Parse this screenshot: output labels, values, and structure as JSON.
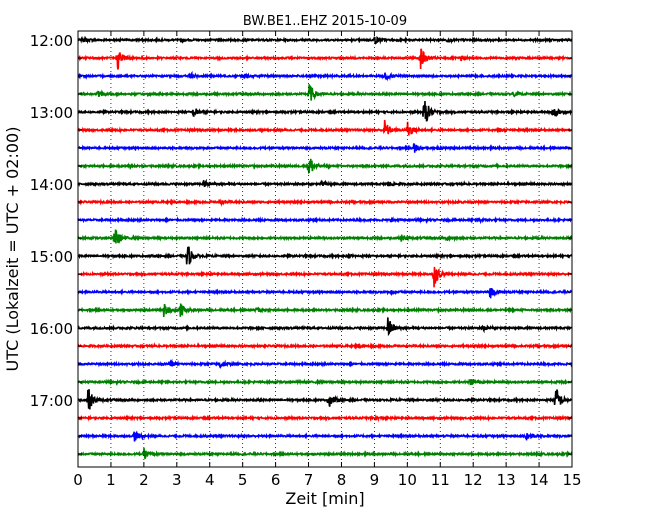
{
  "chart_data": {
    "type": "line",
    "title": "BW.BE1..EHZ 2015-10-09",
    "xlabel": "Zeit  [min]",
    "ylabel": "UTC (Lokalzeit = UTC + 02:00)",
    "xlim": [
      0,
      15
    ],
    "x_ticks": [
      0,
      1,
      2,
      3,
      4,
      5,
      6,
      7,
      8,
      9,
      10,
      11,
      12,
      13,
      14,
      15
    ],
    "y_tick_labels": [
      "12:00",
      "13:00",
      "14:00",
      "15:00",
      "16:00",
      "17:00"
    ],
    "row_start_times": [
      "12:00",
      "12:15",
      "12:30",
      "12:45",
      "13:00",
      "13:15",
      "13:30",
      "13:45",
      "14:00",
      "14:15",
      "14:30",
      "14:45",
      "15:00",
      "15:15",
      "15:30",
      "15:45",
      "16:00",
      "16:15",
      "16:30",
      "16:45",
      "17:00",
      "17:15",
      "17:30",
      "17:45"
    ],
    "minutes_per_row": 15,
    "grid": true,
    "colors": [
      "#000000",
      "#ff0000",
      "#0000ff",
      "#008000"
    ],
    "events": [
      {
        "row": 0,
        "t": 0.2,
        "a": 0.15
      },
      {
        "row": 0,
        "t": 9.0,
        "a": 0.3
      },
      {
        "row": 0,
        "t": 11.2,
        "a": 0.12
      },
      {
        "row": 1,
        "t": 1.2,
        "a": 0.9
      },
      {
        "row": 1,
        "t": 10.4,
        "a": 0.8
      },
      {
        "row": 1,
        "t": 11.6,
        "a": 0.2
      },
      {
        "row": 2,
        "t": 3.4,
        "a": 0.25
      },
      {
        "row": 2,
        "t": 5.0,
        "a": 0.2
      },
      {
        "row": 2,
        "t": 9.3,
        "a": 0.35
      },
      {
        "row": 3,
        "t": 0.6,
        "a": 0.3
      },
      {
        "row": 3,
        "t": 7.0,
        "a": 0.9
      },
      {
        "row": 3,
        "t": 13.2,
        "a": 0.15
      },
      {
        "row": 4,
        "t": 3.5,
        "a": 0.4
      },
      {
        "row": 4,
        "t": 10.5,
        "a": 1.3
      },
      {
        "row": 4,
        "t": 14.4,
        "a": 0.5
      },
      {
        "row": 5,
        "t": 9.3,
        "a": 0.8
      },
      {
        "row": 5,
        "t": 10.0,
        "a": 0.7
      },
      {
        "row": 5,
        "t": 12.8,
        "a": 0.15
      },
      {
        "row": 6,
        "t": 10.2,
        "a": 0.4
      },
      {
        "row": 6,
        "t": 10.9,
        "a": 0.15
      },
      {
        "row": 7,
        "t": 7.0,
        "a": 1.0
      },
      {
        "row": 7,
        "t": 1.5,
        "a": 0.1
      },
      {
        "row": 8,
        "t": 3.8,
        "a": 0.3
      },
      {
        "row": 8,
        "t": 7.4,
        "a": 0.2
      },
      {
        "row": 8,
        "t": 9.4,
        "a": 0.2
      },
      {
        "row": 9,
        "t": 4.3,
        "a": 0.15
      },
      {
        "row": 9,
        "t": 11.5,
        "a": 0.1
      },
      {
        "row": 10,
        "t": 9.5,
        "a": 0.1
      },
      {
        "row": 10,
        "t": 12.2,
        "a": 0.12
      },
      {
        "row": 11,
        "t": 1.1,
        "a": 0.9
      },
      {
        "row": 11,
        "t": 9.8,
        "a": 0.25
      },
      {
        "row": 11,
        "t": 11.2,
        "a": 0.2
      },
      {
        "row": 12,
        "t": 3.3,
        "a": 1.1
      },
      {
        "row": 12,
        "t": 8.2,
        "a": 0.1
      },
      {
        "row": 13,
        "t": 10.8,
        "a": 1.0
      },
      {
        "row": 14,
        "t": 12.5,
        "a": 0.5
      },
      {
        "row": 14,
        "t": 9.5,
        "a": 0.12
      },
      {
        "row": 15,
        "t": 2.6,
        "a": 0.5
      },
      {
        "row": 15,
        "t": 3.1,
        "a": 0.5
      },
      {
        "row": 15,
        "t": 5.4,
        "a": 0.2
      },
      {
        "row": 16,
        "t": 9.4,
        "a": 0.9
      },
      {
        "row": 16,
        "t": 12.3,
        "a": 0.2
      },
      {
        "row": 17,
        "t": 8.5,
        "a": 0.1
      },
      {
        "row": 18,
        "t": 2.8,
        "a": 0.2
      },
      {
        "row": 18,
        "t": 4.3,
        "a": 0.4
      },
      {
        "row": 19,
        "t": 11.9,
        "a": 0.3
      },
      {
        "row": 20,
        "t": 0.3,
        "a": 1.0
      },
      {
        "row": 20,
        "t": 7.6,
        "a": 0.6
      },
      {
        "row": 20,
        "t": 14.5,
        "a": 1.1
      },
      {
        "row": 21,
        "t": 9.0,
        "a": 0.1
      },
      {
        "row": 22,
        "t": 1.7,
        "a": 0.4
      },
      {
        "row": 22,
        "t": 13.6,
        "a": 0.3
      },
      {
        "row": 23,
        "t": 2.0,
        "a": 0.4
      }
    ]
  }
}
